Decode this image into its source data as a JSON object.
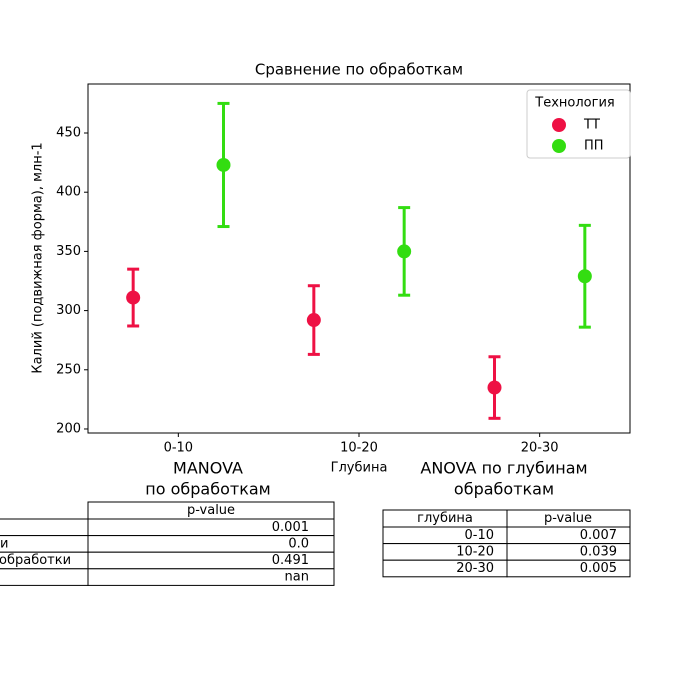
{
  "chart_data": {
    "type": "errorbar",
    "title": "Сравнение по обработкам",
    "xlabel": "Глубина",
    "ylabel": "Калий (подвижная форма), млн-1",
    "categories": [
      "0-10",
      "10-20",
      "20-30"
    ],
    "series": [
      {
        "name": "ТТ",
        "color": "#ee1144",
        "values": [
          311,
          292,
          235
        ],
        "errors": [
          24,
          29,
          26
        ]
      },
      {
        "name": "ПП",
        "color": "#33dd11",
        "values": [
          423,
          350,
          329
        ],
        "errors": [
          52,
          37,
          43
        ]
      }
    ],
    "ylim": [
      196.6,
      491.4
    ],
    "yticks": [
      200,
      250,
      300,
      350,
      400,
      450
    ],
    "legend_title": "Технология",
    "legend": "upper right"
  },
  "manova": {
    "title": [
      "MANOVA",
      "по обработкам"
    ],
    "header": "p-value",
    "rows": [
      [
        null,
        "0.001"
      ],
      [
        "и",
        "0.0"
      ],
      [
        "обработки",
        "0.491"
      ],
      [
        null,
        "nan"
      ]
    ]
  },
  "anova": {
    "title": [
      "ANOVA по глубинам",
      "обработкам"
    ],
    "header": [
      "глубина",
      "p-value"
    ],
    "rows": [
      [
        "0-10",
        "0.007"
      ],
      [
        "10-20",
        "0.039"
      ],
      [
        "20-30",
        "0.005"
      ]
    ]
  }
}
